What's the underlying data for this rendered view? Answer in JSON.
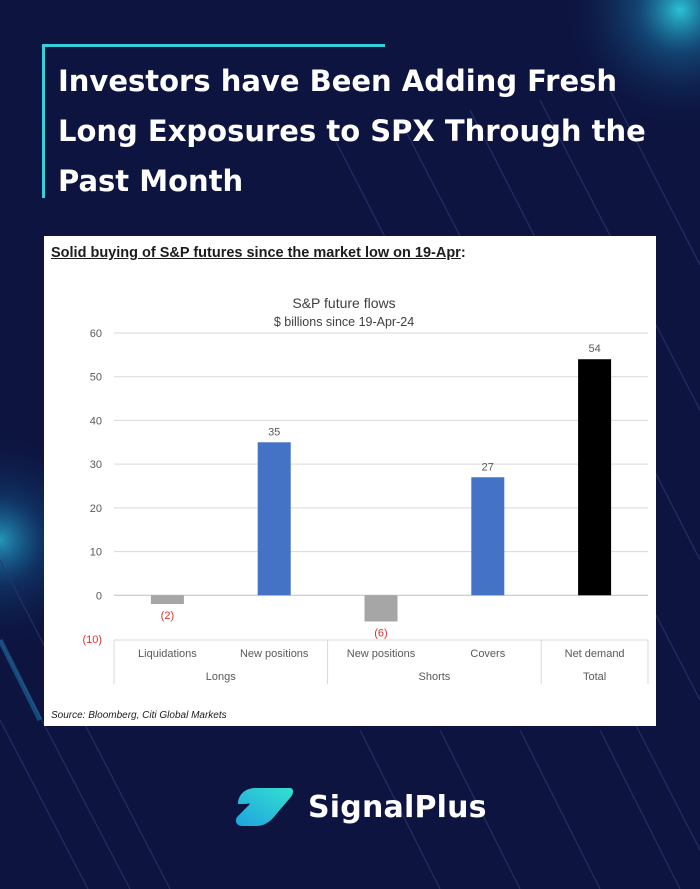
{
  "headline": "Investors have Been Adding Fresh Long Exposures to SPX Through the Past Month",
  "card": {
    "heading_underlined": "Solid buying of S&P futures since the market low on 19-Apr",
    "heading_suffix": ":",
    "source": "Source: Bloomberg, Citi Global Markets"
  },
  "brand": {
    "name": "SignalPlus"
  },
  "colors": {
    "background": "#0d1440",
    "accent": "#35d0dc",
    "bar_positive": "#4472c4",
    "bar_negative": "#a6a6a6",
    "bar_total": "#000000",
    "negative_label": "#e0302a"
  },
  "chart_data": {
    "type": "bar",
    "title": "S&P future flows",
    "subtitle": "$ billions since 19-Apr-24",
    "ylim": [
      -10,
      60
    ],
    "yticks": [
      {
        "value": 60,
        "label": "60"
      },
      {
        "value": 50,
        "label": "50"
      },
      {
        "value": 40,
        "label": "40"
      },
      {
        "value": 30,
        "label": "30"
      },
      {
        "value": 20,
        "label": "20"
      },
      {
        "value": 10,
        "label": "10"
      },
      {
        "value": 0,
        "label": "0"
      },
      {
        "value": -10,
        "label": "(10)"
      }
    ],
    "grid": true,
    "categories": [
      "Liquidations",
      "New positions",
      "New positions",
      "Covers",
      "Net demand"
    ],
    "groups": [
      {
        "label": "Longs",
        "span": 2
      },
      {
        "label": "Shorts",
        "span": 2
      },
      {
        "label": "Total",
        "span": 1
      }
    ],
    "bars": [
      {
        "category": "Liquidations",
        "group": "Longs",
        "value": -2,
        "label": "(2)",
        "color": "#a6a6a6"
      },
      {
        "category": "New positions",
        "group": "Longs",
        "value": 35,
        "label": "35",
        "color": "#4472c4"
      },
      {
        "category": "New positions",
        "group": "Shorts",
        "value": -6,
        "label": "(6)",
        "color": "#a6a6a6"
      },
      {
        "category": "Covers",
        "group": "Shorts",
        "value": 27,
        "label": "27",
        "color": "#4472c4"
      },
      {
        "category": "Net demand",
        "group": "Total",
        "value": 54,
        "label": "54",
        "color": "#000000"
      }
    ]
  }
}
